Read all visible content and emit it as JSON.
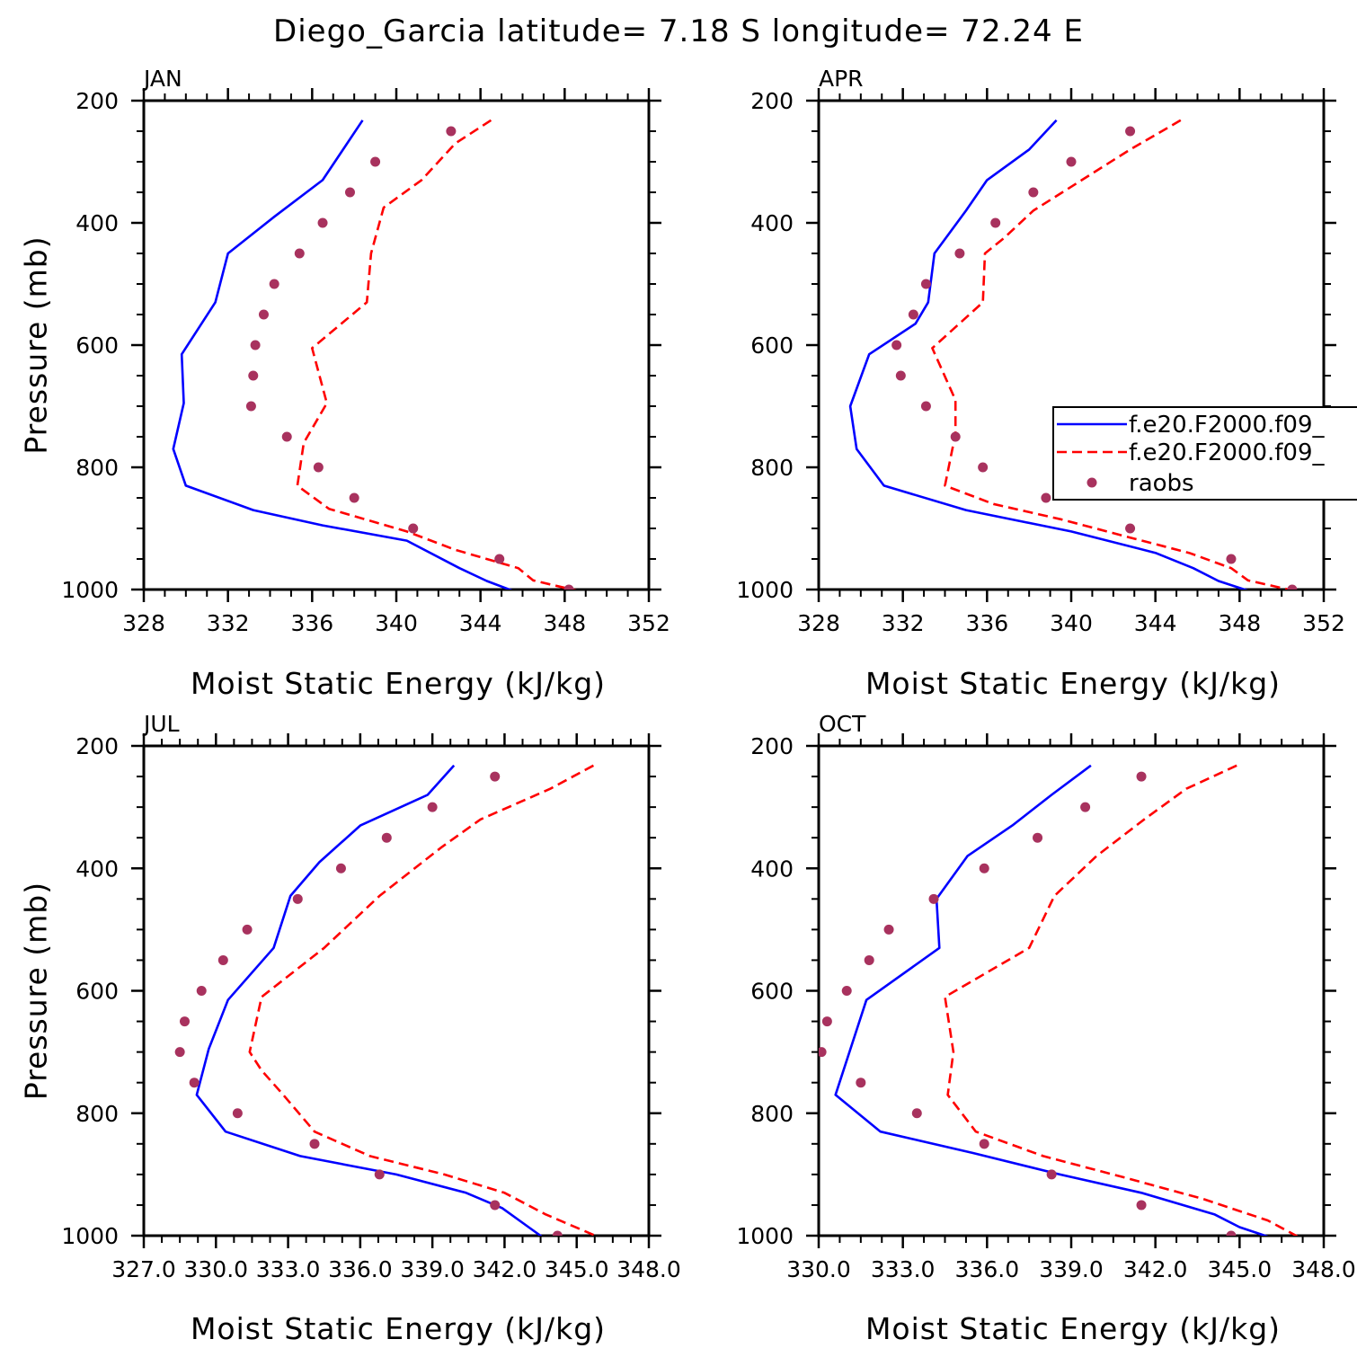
{
  "title": "Diego_Garcia  latitude= 7.18 S longitude= 72.24 E",
  "colors": {
    "model1": "#0000ff",
    "model2": "#ff0000",
    "obs": "#a8325e"
  },
  "chart_data": [
    {
      "type": "line",
      "panel_title": "JAN",
      "xlabel": "Moist Static Energy (kJ/kg)",
      "ylabel": "Pressure (mb)",
      "xlim": [
        328,
        352
      ],
      "ylim": [
        1000,
        200
      ],
      "x_tick_labels": [
        "328",
        "332",
        "336",
        "340",
        "344",
        "348",
        "352"
      ],
      "y_tick_labels": [
        "200",
        "400",
        "600",
        "800",
        "1000"
      ],
      "series": [
        {
          "style": "solid",
          "points": [
            [
              338.4,
              232
            ],
            [
              336.5,
              330
            ],
            [
              334.2,
              390
            ],
            [
              332.0,
              450
            ],
            [
              331.4,
              530
            ],
            [
              329.8,
              615
            ],
            [
              329.9,
              695
            ],
            [
              329.4,
              770
            ],
            [
              330.0,
              830
            ],
            [
              333.2,
              870
            ],
            [
              336.5,
              895
            ],
            [
              340.5,
              920
            ],
            [
              343.0,
              965
            ],
            [
              344.3,
              986
            ],
            [
              345.6,
              1003
            ]
          ]
        },
        {
          "style": "dashed",
          "points": [
            [
              344.5,
              232
            ],
            [
              342.8,
              270
            ],
            [
              341.2,
              330
            ],
            [
              339.4,
              375
            ],
            [
              338.8,
              450
            ],
            [
              338.6,
              530
            ],
            [
              336.0,
              605
            ],
            [
              336.7,
              695
            ],
            [
              335.6,
              760
            ],
            [
              335.3,
              830
            ],
            [
              336.8,
              868
            ],
            [
              340.5,
              905
            ],
            [
              342.8,
              935
            ],
            [
              345.8,
              965
            ],
            [
              346.5,
              985
            ],
            [
              348.6,
              1002
            ]
          ]
        },
        {
          "style": "points",
          "points": [
            [
              342.6,
              250
            ],
            [
              339.0,
              300
            ],
            [
              337.8,
              350
            ],
            [
              336.5,
              400
            ],
            [
              335.4,
              450
            ],
            [
              334.2,
              500
            ],
            [
              333.7,
              550
            ],
            [
              333.3,
              600
            ],
            [
              333.2,
              650
            ],
            [
              333.1,
              700
            ],
            [
              334.8,
              750
            ],
            [
              336.3,
              800
            ],
            [
              338.0,
              850
            ],
            [
              340.8,
              900
            ],
            [
              344.9,
              950
            ],
            [
              348.2,
              1000
            ]
          ]
        }
      ]
    },
    {
      "type": "line",
      "panel_title": "APR",
      "xlabel": "Moist Static Energy (kJ/kg)",
      "ylabel": "",
      "xlim": [
        328,
        352
      ],
      "ylim": [
        1000,
        200
      ],
      "x_tick_labels": [
        "328",
        "332",
        "336",
        "340",
        "344",
        "348",
        "352"
      ],
      "y_tick_labels": [
        "200",
        "400",
        "600",
        "800",
        "1000"
      ],
      "legend": {
        "position": "right",
        "entries": [
          "f.e20.F2000.f09_",
          "f.e20.F2000.f09_",
          "raobs"
        ]
      },
      "series": [
        {
          "style": "solid",
          "points": [
            [
              339.3,
              232
            ],
            [
              338.0,
              280
            ],
            [
              336.0,
              330
            ],
            [
              335.0,
              380
            ],
            [
              333.5,
              450
            ],
            [
              333.2,
              530
            ],
            [
              332.6,
              565
            ],
            [
              330.4,
              615
            ],
            [
              329.5,
              700
            ],
            [
              329.8,
              770
            ],
            [
              331.1,
              830
            ],
            [
              335.0,
              870
            ],
            [
              340.0,
              905
            ],
            [
              344.0,
              940
            ],
            [
              345.8,
              965
            ],
            [
              347.0,
              986
            ],
            [
              348.5,
              1003
            ]
          ]
        },
        {
          "style": "dashed",
          "points": [
            [
              345.2,
              232
            ],
            [
              342.8,
              280
            ],
            [
              340.5,
              330
            ],
            [
              338.2,
              380
            ],
            [
              336.8,
              425
            ],
            [
              335.9,
              450
            ],
            [
              335.8,
              530
            ],
            [
              333.4,
              605
            ],
            [
              334.5,
              690
            ],
            [
              334.5,
              745
            ],
            [
              334.0,
              830
            ],
            [
              336.3,
              860
            ],
            [
              339.5,
              885
            ],
            [
              342.8,
              915
            ],
            [
              345.6,
              940
            ],
            [
              347.6,
              965
            ],
            [
              348.4,
              985
            ],
            [
              350.6,
              1002
            ]
          ]
        },
        {
          "style": "points",
          "points": [
            [
              342.8,
              250
            ],
            [
              340.0,
              300
            ],
            [
              338.2,
              350
            ],
            [
              336.4,
              400
            ],
            [
              334.7,
              450
            ],
            [
              333.1,
              500
            ],
            [
              332.5,
              550
            ],
            [
              331.7,
              600
            ],
            [
              331.9,
              650
            ],
            [
              333.1,
              700
            ],
            [
              334.5,
              750
            ],
            [
              335.8,
              800
            ],
            [
              338.8,
              850
            ],
            [
              342.8,
              900
            ],
            [
              347.6,
              950
            ],
            [
              350.5,
              1000
            ]
          ]
        }
      ]
    },
    {
      "type": "line",
      "panel_title": "JUL",
      "xlabel": "Moist Static Energy (kJ/kg)",
      "ylabel": "Pressure (mb)",
      "xlim": [
        327,
        348
      ],
      "ylim": [
        1000,
        200
      ],
      "x_tick_labels": [
        "327.0",
        "330.0",
        "333.0",
        "336.0",
        "339.0",
        "342.0",
        "345.0",
        "348.0"
      ],
      "y_tick_labels": [
        "200",
        "400",
        "600",
        "800",
        "1000"
      ],
      "series": [
        {
          "style": "solid",
          "points": [
            [
              339.9,
              232
            ],
            [
              338.8,
              280
            ],
            [
              336.0,
              330
            ],
            [
              334.3,
              390
            ],
            [
              333.1,
              445
            ],
            [
              332.4,
              530
            ],
            [
              330.5,
              615
            ],
            [
              329.7,
              695
            ],
            [
              329.2,
              770
            ],
            [
              330.4,
              830
            ],
            [
              333.5,
              870
            ],
            [
              337.5,
              900
            ],
            [
              340.4,
              930
            ],
            [
              341.9,
              955
            ],
            [
              343.0,
              986
            ],
            [
              343.6,
              1003
            ]
          ]
        },
        {
          "style": "dashed",
          "points": [
            [
              345.7,
              232
            ],
            [
              343.9,
              270
            ],
            [
              341.0,
              320
            ],
            [
              339.4,
              365
            ],
            [
              336.8,
              445
            ],
            [
              334.5,
              530
            ],
            [
              331.9,
              610
            ],
            [
              331.4,
              700
            ],
            [
              331.9,
              730
            ],
            [
              332.8,
              770
            ],
            [
              334.1,
              830
            ],
            [
              336.4,
              870
            ],
            [
              339.5,
              900
            ],
            [
              342.0,
              930
            ],
            [
              343.7,
              965
            ],
            [
              345.9,
              1002
            ]
          ]
        },
        {
          "style": "points",
          "points": [
            [
              341.6,
              250
            ],
            [
              339.0,
              300
            ],
            [
              337.1,
              350
            ],
            [
              335.2,
              400
            ],
            [
              333.4,
              450
            ],
            [
              331.3,
              500
            ],
            [
              330.3,
              550
            ],
            [
              329.4,
              600
            ],
            [
              328.7,
              650
            ],
            [
              328.5,
              700
            ],
            [
              329.1,
              750
            ],
            [
              330.9,
              800
            ],
            [
              334.1,
              850
            ],
            [
              336.8,
              900
            ],
            [
              341.6,
              950
            ],
            [
              344.2,
              1000
            ]
          ]
        }
      ]
    },
    {
      "type": "line",
      "panel_title": "OCT",
      "xlabel": "Moist Static Energy (kJ/kg)",
      "ylabel": "",
      "xlim": [
        330,
        348
      ],
      "ylim": [
        1000,
        200
      ],
      "x_tick_labels": [
        "330.0",
        "333.0",
        "336.0",
        "339.0",
        "342.0",
        "345.0",
        "348.0"
      ],
      "y_tick_labels": [
        "200",
        "400",
        "600",
        "800",
        "1000"
      ],
      "series": [
        {
          "style": "solid",
          "points": [
            [
              339.7,
              232
            ],
            [
              338.3,
              280
            ],
            [
              336.9,
              330
            ],
            [
              335.3,
              380
            ],
            [
              334.2,
              450
            ],
            [
              334.3,
              530
            ],
            [
              331.7,
              615
            ],
            [
              330.6,
              770
            ],
            [
              332.2,
              830
            ],
            [
              335.5,
              865
            ],
            [
              338.6,
              900
            ],
            [
              341.5,
              930
            ],
            [
              344.1,
              965
            ],
            [
              345.0,
              986
            ],
            [
              346.1,
              1003
            ]
          ]
        },
        {
          "style": "dashed",
          "points": [
            [
              344.9,
              232
            ],
            [
              343.1,
              270
            ],
            [
              341.6,
              320
            ],
            [
              339.9,
              380
            ],
            [
              338.4,
              445
            ],
            [
              337.5,
              530
            ],
            [
              334.5,
              610
            ],
            [
              334.8,
              700
            ],
            [
              334.6,
              770
            ],
            [
              335.6,
              830
            ],
            [
              338.0,
              870
            ],
            [
              340.9,
              905
            ],
            [
              343.7,
              940
            ],
            [
              346.0,
              975
            ],
            [
              347.1,
              1002
            ]
          ]
        },
        {
          "style": "points",
          "points": [
            [
              341.5,
              250
            ],
            [
              339.5,
              300
            ],
            [
              337.8,
              350
            ],
            [
              335.9,
              400
            ],
            [
              334.1,
              450
            ],
            [
              332.5,
              500
            ],
            [
              331.8,
              550
            ],
            [
              331.0,
              600
            ],
            [
              330.3,
              650
            ],
            [
              330.1,
              700
            ],
            [
              331.5,
              750
            ],
            [
              333.5,
              800
            ],
            [
              335.9,
              850
            ],
            [
              338.3,
              900
            ],
            [
              341.5,
              950
            ],
            [
              344.7,
              1000
            ]
          ]
        }
      ]
    }
  ]
}
